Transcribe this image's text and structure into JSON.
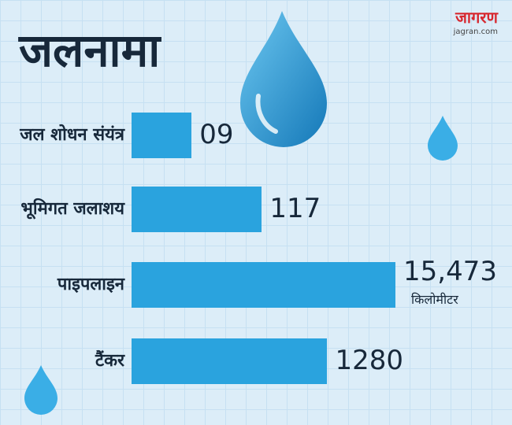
{
  "header": {
    "title": "जलनामा",
    "logo": "जागरण",
    "logo_sub": "jagran.com"
  },
  "chart_data": {
    "type": "bar",
    "orientation": "horizontal",
    "log_scale": true,
    "color": "#2aa3de",
    "categories": [
      "जल शोधन संयंत्र",
      "भूमिगत जलाशय",
      "पाइपलाइन",
      "टैंकर"
    ],
    "values": [
      9,
      117,
      15473,
      1280
    ],
    "value_labels": [
      "09",
      "117",
      "15,473",
      "1280"
    ],
    "annotations": [
      {
        "category": 2,
        "text": "किलोमीटर"
      }
    ]
  }
}
